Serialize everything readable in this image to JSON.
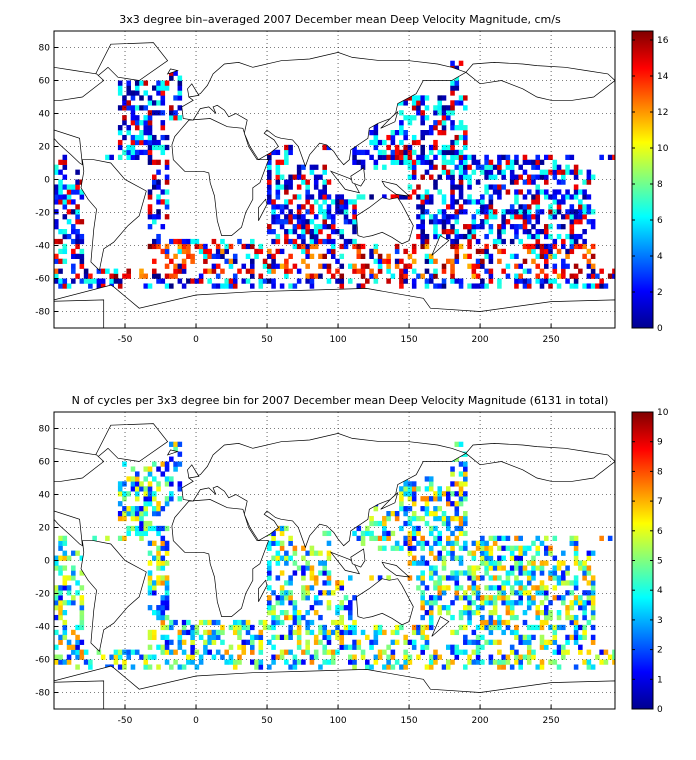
{
  "panels": [
    {
      "title": "3x3 degree bin–averaged 2007 December mean Deep Velocity Magnitude, cm/s",
      "x_ticks": [
        "-50",
        "0",
        "50",
        "100",
        "150",
        "200",
        "250"
      ],
      "y_ticks": [
        "80",
        "60",
        "40",
        "20",
        "0",
        "-20",
        "-40",
        "-60",
        "-80"
      ],
      "colorbar_ticks": [
        "16",
        "14",
        "12",
        "10",
        "8",
        "6",
        "4",
        "2",
        "0"
      ]
    },
    {
      "title": "N of cycles per 3x3 degree bin for 2007 December mean Deep Velocity Magnitude (6131 in total)",
      "x_ticks": [
        "-50",
        "0",
        "50",
        "100",
        "150",
        "200",
        "250"
      ],
      "y_ticks": [
        "80",
        "60",
        "40",
        "20",
        "0",
        "-20",
        "-40",
        "-60",
        "-80"
      ],
      "colorbar_ticks": [
        "10",
        "9",
        "8",
        "7",
        "6",
        "5",
        "4",
        "3",
        "2",
        "1",
        "0"
      ]
    }
  ],
  "chart_data": [
    {
      "type": "heatmap",
      "title": "3x3 degree bin–averaged 2007 December mean Deep Velocity Magnitude, cm/s",
      "xlim": [
        -100,
        295
      ],
      "ylim": [
        -90,
        90
      ],
      "bin_size_deg": 3,
      "colorscale": "jet",
      "clim": [
        0,
        16.5
      ],
      "grid": true,
      "colorbar_location": "right",
      "z_unit": "cm/s"
    },
    {
      "type": "heatmap",
      "title": "N of cycles per 3x3 degree bin for 2007 December mean Deep Velocity Magnitude (6131 in total)",
      "xlim": [
        -100,
        295
      ],
      "ylim": [
        -90,
        90
      ],
      "bin_size_deg": 3,
      "colorscale": "jet",
      "clim": [
        0,
        10
      ],
      "total_cycles": 6131,
      "grid": true,
      "colorbar_location": "right"
    }
  ]
}
